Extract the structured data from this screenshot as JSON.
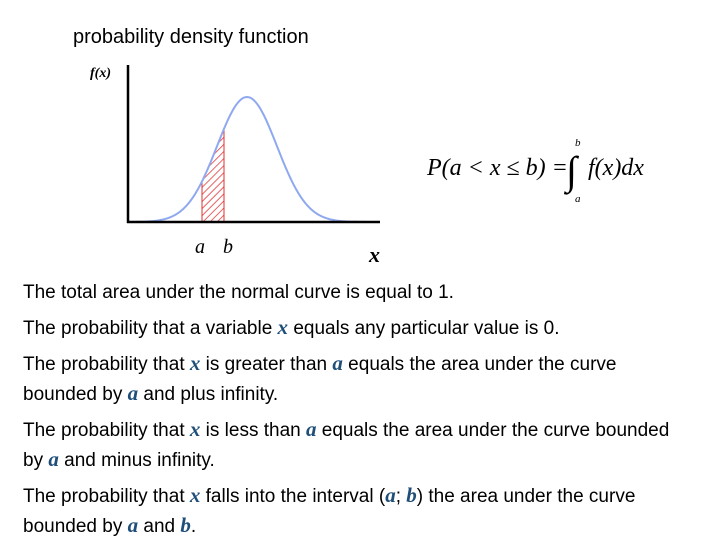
{
  "title": "probability density function",
  "graph": {
    "y_label": "f(x)",
    "a_label": "a",
    "b_label": "b",
    "x_label": "x"
  },
  "formula": {
    "lhs": "P(a < x ≤ b) =",
    "integral": "∫",
    "upper": "b",
    "lower": "a",
    "integrand": "f(x)dx"
  },
  "paragraphs": [
    {
      "runs": [
        {
          "text": "The total area under the normal curve is equal to 1."
        }
      ]
    },
    {
      "runs": [
        {
          "text": "The probability that a variable "
        },
        {
          "var": "x"
        },
        {
          "text": " equals any particular value is 0."
        }
      ]
    },
    {
      "runs": [
        {
          "text": "The probability that "
        },
        {
          "var": "x"
        },
        {
          "text": " is greater than "
        },
        {
          "var": "a"
        },
        {
          "text": " equals the area under the curve bounded by "
        },
        {
          "var": "a"
        },
        {
          "text": " and plus infinity."
        }
      ]
    },
    {
      "runs": [
        {
          "text": "The probability that "
        },
        {
          "var": "x"
        },
        {
          "text": " is less than "
        },
        {
          "var": "a"
        },
        {
          "text": " equals the area under the curve bounded by "
        },
        {
          "var": "a"
        },
        {
          "text": " and minus infinity."
        }
      ]
    },
    {
      "runs": [
        {
          "text": "The probability that "
        },
        {
          "var": "x"
        },
        {
          "text": " falls into the interval ("
        },
        {
          "var": "a"
        },
        {
          "text": "; "
        },
        {
          "var": "b"
        },
        {
          "text": ") the area under the curve bounded by "
        },
        {
          "var": "a"
        },
        {
          "text": " and "
        },
        {
          "var": "b"
        },
        {
          "text": "."
        }
      ]
    }
  ]
}
